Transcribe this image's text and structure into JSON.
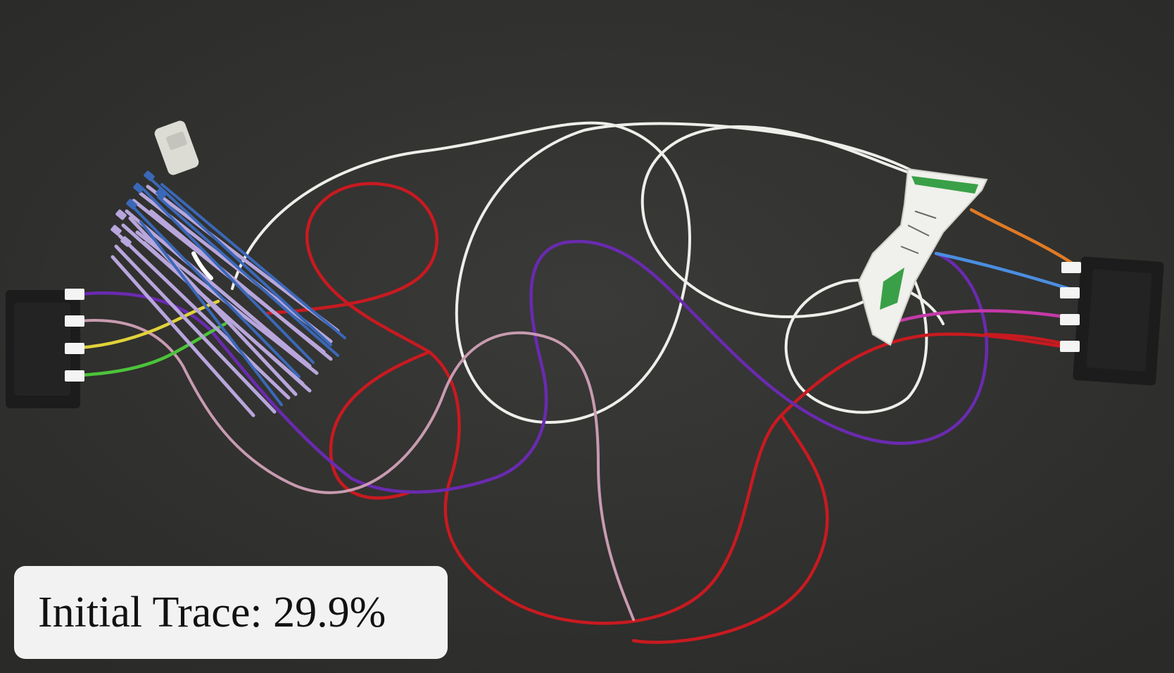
{
  "overlay": {
    "label": "Initial Trace: 29.9%",
    "trace_progress_percent": 29.9
  },
  "scene": {
    "background": "#333331",
    "objects": [
      "left-connector",
      "right-connector",
      "cable-tie-bundle",
      "loose-plug",
      "paper-label",
      "white-wire",
      "red-wire",
      "purple-wire",
      "pink-wire",
      "yellow-wire",
      "green-wire",
      "orange-wire",
      "blue-wire"
    ]
  },
  "colors": {
    "white_wire": "#eeeeea",
    "red_wire": "#c81a20",
    "purple_wire": "#6a2ab0",
    "pink_wire": "#c89bb0",
    "yellow_wire": "#e0d23a",
    "green_wire": "#4cc43a",
    "orange_wire": "#e07a24",
    "blue_wire": "#4a8ee0",
    "magenta_wire": "#c43aa8",
    "tie_lavender": "#b8a6dc",
    "tie_blue": "#3a68b8",
    "connector_black": "#1c1c1c"
  }
}
